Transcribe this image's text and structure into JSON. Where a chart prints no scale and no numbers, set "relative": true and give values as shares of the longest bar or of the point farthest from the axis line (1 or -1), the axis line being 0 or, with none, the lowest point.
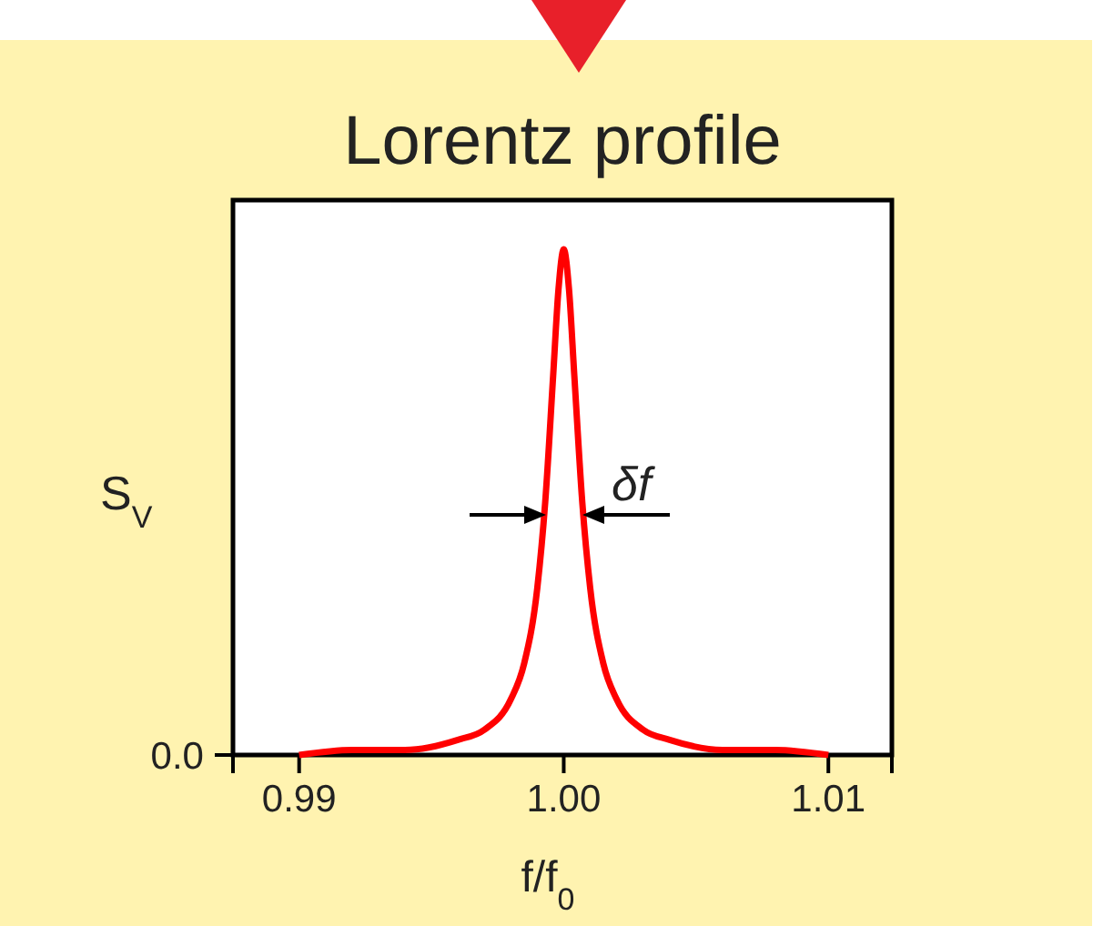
{
  "chart_data": {
    "type": "line",
    "title": "Lorentz profile",
    "xlabel": "f/f$_{0}$",
    "ylabel": "S$_{V}$",
    "relative": true,
    "x": [
      0.99,
      0.992,
      0.994,
      0.996,
      0.997,
      0.998,
      0.9985,
      0.999,
      0.9993,
      0.9996,
      0.9998,
      1.0,
      1.0002,
      1.0004,
      1.0007,
      1.001,
      1.0015,
      1.002,
      1.003,
      1.004,
      1.006,
      1.008,
      1.01
    ],
    "series": [
      {
        "color": "#ff0000",
        "values": [
          0.0,
          0.01,
          0.01,
          0.03,
          0.05,
          0.11,
          0.18,
          0.33,
          0.5,
          0.75,
          0.92,
          1,
          0.92,
          0.75,
          0.5,
          0.33,
          0.18,
          0.11,
          0.05,
          0.03,
          0.01,
          0.01,
          0.0
        ]
      }
    ],
    "xlim": [
      0.9875,
      1.0124
    ],
    "xticks": [
      {
        "value": 0.99,
        "label": "0.99"
      },
      {
        "value": 1.0,
        "label": "1.00"
      },
      {
        "value": 1.01,
        "label": "1.01"
      }
    ],
    "annotations": [
      "δf",
      "0.0"
    ]
  }
}
